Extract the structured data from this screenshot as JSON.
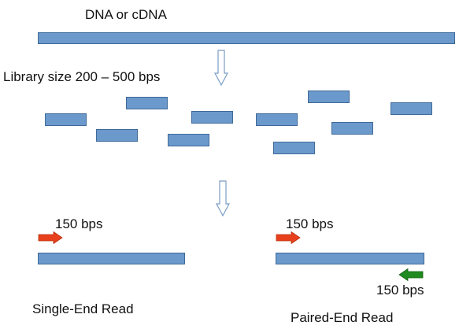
{
  "source_label": "DNA or cDNA",
  "library_label": "Library size 200 – 500 bps",
  "single_end": {
    "read_length_label": "150 bps",
    "title": "Single-End Read"
  },
  "paired_end": {
    "forward_read_label": "150 bps",
    "reverse_read_label": "150 bps",
    "title": "Paired-End Read"
  },
  "colors": {
    "fragment_fill": "#6b99cc",
    "fragment_border": "#3f6a99",
    "forward_arrow": "#e8401c",
    "reverse_arrow": "#1f8a1f",
    "flow_arrow_outline": "#7a9cc4"
  }
}
